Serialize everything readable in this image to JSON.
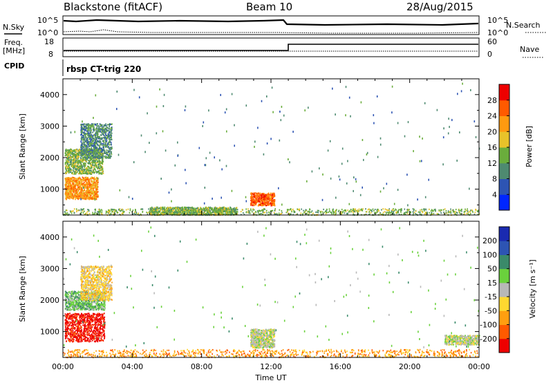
{
  "header": {
    "radar": "Blackstone (fitACF)",
    "beam": "Beam 10",
    "date": "28/Aug/2015"
  },
  "summary": {
    "nsky_label": "N.Sky",
    "nsearch_label": "N.Search",
    "freq_label": "Freq.",
    "freq_unit": "[MHz]",
    "nave_label": "Nave",
    "cpid_label": "CPID",
    "cpid_value": "rbsp CT-trig 220",
    "noise_ticks": [
      "10^5",
      "10^0"
    ],
    "freq_ticks": [
      "18",
      "8"
    ],
    "nave_ticks": [
      "60",
      "0"
    ]
  },
  "colors": {
    "power": [
      "#0026ff",
      "#2d54b3",
      "#4e8a70",
      "#6aad3c",
      "#e8c22a",
      "#ff9a10",
      "#ff5a00",
      "#ee0000"
    ],
    "velocity": [
      "#ee0000",
      "#ff5a00",
      "#ff9f10",
      "#ffd830",
      "#b8b8b8",
      "#6ad13c",
      "#3a8a6a",
      "#2d54b3",
      "#1a2ab0"
    ]
  },
  "chart_data": [
    {
      "type": "heatmap",
      "name": "power",
      "xlabel": "",
      "ylabel": "Slant Range [km]",
      "xlim": [
        0,
        24
      ],
      "ylim": [
        180,
        4500
      ],
      "yticks": [
        "1000",
        "2000",
        "3000",
        "4000"
      ],
      "colorbar_label": "Power [dB]",
      "colorbar_ticks": [
        "4",
        "8",
        "12",
        "16",
        "20",
        "24",
        "28"
      ],
      "colorbar_range": [
        0,
        32
      ],
      "regions": [
        {
          "t": [
            0.0,
            24.0
          ],
          "r": [
            200,
            400
          ],
          "level": 3
        },
        {
          "t": [
            0.1,
            2.0
          ],
          "r": [
            700,
            1400
          ],
          "level": 5
        },
        {
          "t": [
            0.1,
            2.3
          ],
          "r": [
            1500,
            2300
          ],
          "level": 3
        },
        {
          "t": [
            1.0,
            2.8
          ],
          "r": [
            2000,
            3100
          ],
          "level": 2
        },
        {
          "t": [
            10.8,
            12.2
          ],
          "r": [
            500,
            900
          ],
          "level": 6
        },
        {
          "t": [
            5.0,
            10.0
          ],
          "r": [
            200,
            450
          ],
          "level": 3
        },
        {
          "t": [
            0.0,
            24.0
          ],
          "r": [
            500,
            4400
          ],
          "level": 2
        }
      ]
    },
    {
      "type": "heatmap",
      "name": "velocity",
      "xlabel": "Time UT",
      "ylabel": "Slant Range [km]",
      "xlim": [
        0,
        24
      ],
      "ylim": [
        180,
        4500
      ],
      "xticks": [
        "00:00",
        "04:00",
        "08:00",
        "12:00",
        "16:00",
        "20:00",
        "00:00"
      ],
      "yticks": [
        "1000",
        "2000",
        "3000",
        "4000"
      ],
      "colorbar_label": "Velocity [m s⁻¹]",
      "colorbar_ticks": [
        "-200",
        "-100",
        "-50",
        "-15",
        "15",
        "50",
        "100",
        "200"
      ],
      "colorbar_range": [
        -250,
        250
      ],
      "regions": [
        {
          "t": [
            0.0,
            24.0
          ],
          "r": [
            200,
            450
          ],
          "level": 2
        },
        {
          "t": [
            0.1,
            2.4
          ],
          "r": [
            700,
            1600
          ],
          "level": 0
        },
        {
          "t": [
            0.1,
            2.4
          ],
          "r": [
            1700,
            2300
          ],
          "level": 5
        },
        {
          "t": [
            1.0,
            2.8
          ],
          "r": [
            2000,
            3100
          ],
          "level": 3
        },
        {
          "t": [
            10.8,
            12.2
          ],
          "r": [
            500,
            1100
          ],
          "level": 4
        },
        {
          "t": [
            22.0,
            24.0
          ],
          "r": [
            600,
            900
          ],
          "level": 4
        },
        {
          "t": [
            0.0,
            24.0
          ],
          "r": [
            500,
            4400
          ],
          "level": 5
        }
      ]
    }
  ]
}
